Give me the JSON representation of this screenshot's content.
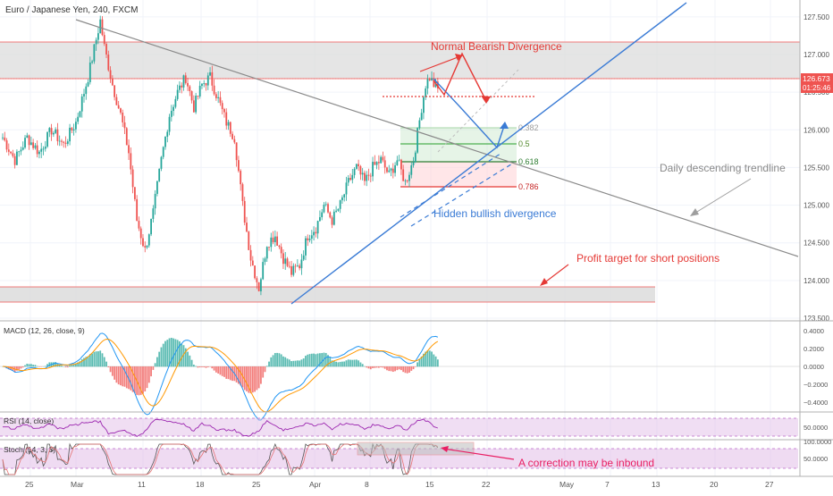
{
  "header": {
    "title": "Euro / Japanese Yen, 240, FXCM"
  },
  "price": {
    "last": "126.673",
    "countdown": "01:25:46"
  },
  "colors": {
    "up": "#26a69a",
    "down": "#ef5350",
    "trend_blue": "#3a7bd5",
    "trend_gray": "#8a8a8a",
    "red_annot": "#e53935",
    "zone_fill": "#d8d8d8",
    "fib_green": "#4caf50",
    "fib_red": "#e53935",
    "macd_line": "#2196f3",
    "signal_line": "#ff9800",
    "osc_purple": "#9c27b0"
  },
  "annotations": {
    "bearish": "Normal Bearish Divergence",
    "hidden": "Hidden bullish divergence",
    "trendline": "Daily descending trendline",
    "target": "Profit target for short positions",
    "correction": "A correction may be inbound"
  },
  "fib_labels": [
    "0.382",
    "0.5",
    "0.618",
    "0.786"
  ],
  "panels": {
    "macd": "MACD (12, 26, close, 9)",
    "rsi": "RSI (14, close)",
    "stoch": "Stoch (14, 3, 3)"
  },
  "chart_data": [
    {
      "type": "candlestick",
      "title": "Euro / Japanese Yen, 240, FXCM",
      "ylim": [
        123.5,
        127.7
      ],
      "y_ticks": [
        "127.500",
        "127.000",
        "126.500",
        "126.000",
        "125.500",
        "125.000",
        "124.500",
        "124.000",
        "123.500"
      ],
      "x_ticks": [
        "25",
        "Mar",
        "11",
        "18",
        "25",
        "Apr",
        "8",
        "15",
        "22",
        "May",
        "7",
        "13",
        "20",
        "27"
      ],
      "anchors": [
        [
          0,
          125.9
        ],
        [
          6,
          125.6
        ],
        [
          12,
          125.9
        ],
        [
          18,
          125.7
        ],
        [
          24,
          126.0
        ],
        [
          30,
          125.8
        ],
        [
          36,
          126.1
        ],
        [
          42,
          126.7
        ],
        [
          46,
          127.2
        ],
        [
          48,
          127.45
        ],
        [
          50,
          127.1
        ],
        [
          54,
          126.6
        ],
        [
          58,
          126.2
        ],
        [
          62,
          125.7
        ],
        [
          66,
          124.8
        ],
        [
          70,
          124.4
        ],
        [
          74,
          124.9
        ],
        [
          78,
          125.6
        ],
        [
          82,
          126.2
        ],
        [
          86,
          126.5
        ],
        [
          90,
          126.7
        ],
        [
          94,
          126.3
        ],
        [
          98,
          126.6
        ],
        [
          102,
          126.7
        ],
        [
          106,
          126.4
        ],
        [
          110,
          126.1
        ],
        [
          114,
          125.9
        ],
        [
          118,
          125.0
        ],
        [
          122,
          124.3
        ],
        [
          126,
          123.9
        ],
        [
          130,
          124.5
        ],
        [
          134,
          124.6
        ],
        [
          138,
          124.3
        ],
        [
          142,
          124.1
        ],
        [
          146,
          124.2
        ],
        [
          150,
          124.6
        ],
        [
          154,
          124.7
        ],
        [
          158,
          125.0
        ],
        [
          162,
          124.8
        ],
        [
          166,
          125.0
        ],
        [
          170,
          125.3
        ],
        [
          174,
          125.5
        ],
        [
          178,
          125.3
        ],
        [
          182,
          125.5
        ],
        [
          186,
          125.6
        ],
        [
          190,
          125.4
        ],
        [
          194,
          125.6
        ],
        [
          198,
          125.3
        ],
        [
          202,
          125.6
        ],
        [
          206,
          126.3
        ],
        [
          208,
          126.6
        ],
        [
          210,
          126.7
        ],
        [
          212,
          126.6
        ],
        [
          214,
          126.55
        ]
      ]
    },
    {
      "type": "line",
      "title": "MACD (12, 26, close, 9)",
      "y_ticks": [
        "0.4000",
        "0.2000",
        "0.0000",
        "−0.2000",
        "−0.4000"
      ]
    },
    {
      "type": "line",
      "title": "RSI (14, close)",
      "y_ticks": [
        "50.0000"
      ]
    },
    {
      "type": "line",
      "title": "Stoch (14, 3, 3)",
      "y_ticks": [
        "100.0000",
        "50.0000"
      ]
    }
  ]
}
